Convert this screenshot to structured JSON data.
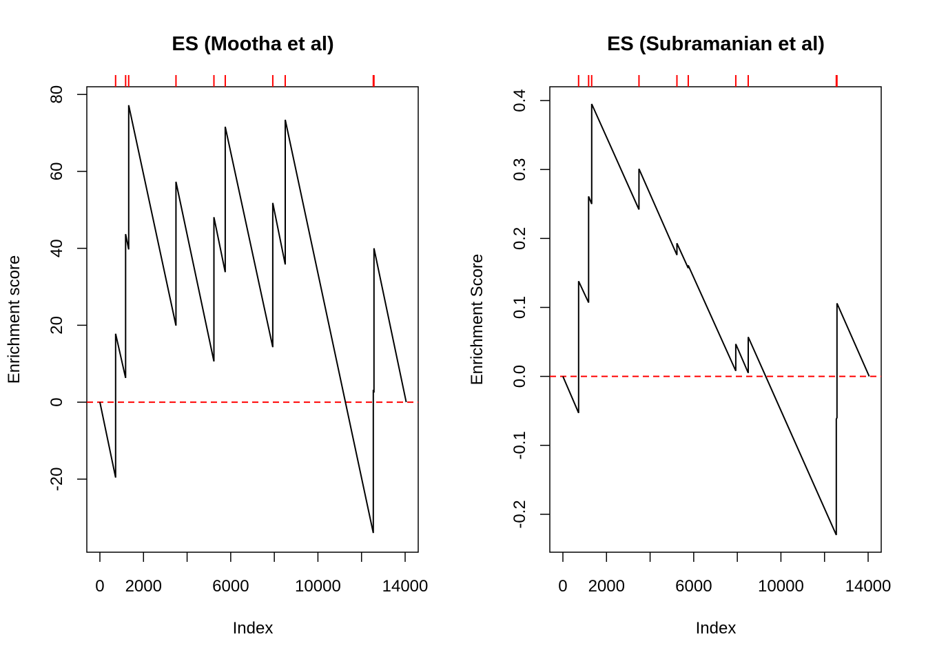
{
  "chart_data": [
    {
      "type": "line",
      "title": "ES (Mootha et al)",
      "xlabel": "Index",
      "ylabel": "Enrichment score",
      "xlim": [
        -600,
        14600
      ],
      "ylim": [
        -39,
        82
      ],
      "x_ticks": [
        0,
        2000,
        4000,
        6000,
        8000,
        10000,
        12000,
        14000
      ],
      "x_tick_labels": [
        "0",
        "2000",
        "",
        "6000",
        "",
        "10000",
        "",
        "14000"
      ],
      "y_ticks": [
        -20,
        0,
        20,
        40,
        60,
        80
      ],
      "y_tick_labels": [
        "-20",
        "0",
        "20",
        "40",
        "60",
        "80"
      ],
      "reference_line": {
        "y": 0,
        "color": "#ff0000",
        "style": "dashed"
      },
      "hits": [
        720,
        1180,
        1320,
        3490,
        5230,
        5750,
        7930,
        8500,
        12540,
        12570
      ],
      "hit_color": "#ff0000",
      "series": [
        {
          "color": "#000000",
          "x": [
            0,
            720,
            720,
            1180,
            1180,
            1320,
            1320,
            3490,
            3490,
            5230,
            5230,
            5750,
            5750,
            7930,
            7930,
            8500,
            8500,
            12540,
            12540,
            12570,
            12570,
            14050
          ],
          "y": [
            0,
            -19.6,
            17.8,
            6.3,
            43.7,
            39.7,
            77.2,
            19.9,
            57.3,
            10.6,
            48.1,
            33.8,
            71.6,
            14.3,
            51.8,
            35.8,
            73.4,
            -34.0,
            3.2,
            2.5,
            40.0,
            0
          ]
        }
      ]
    },
    {
      "type": "line",
      "title": "ES (Subramanian et al)",
      "xlabel": "Index",
      "ylabel": "Enrichment Score",
      "xlim": [
        -600,
        14600
      ],
      "ylim": [
        -0.255,
        0.42
      ],
      "x_ticks": [
        0,
        2000,
        4000,
        6000,
        8000,
        10000,
        12000,
        14000
      ],
      "x_tick_labels": [
        "0",
        "2000",
        "",
        "6000",
        "",
        "10000",
        "",
        "14000"
      ],
      "y_ticks": [
        -0.2,
        -0.1,
        0.0,
        0.1,
        0.2,
        0.3,
        0.4
      ],
      "y_tick_labels": [
        "-0.2",
        "-0.1",
        "0.0",
        "0.1",
        "0.2",
        "0.3",
        "0.4"
      ],
      "reference_line": {
        "y": 0,
        "color": "#ff0000",
        "style": "dashed"
      },
      "hits": [
        720,
        1180,
        1320,
        3490,
        5230,
        5750,
        7930,
        8500,
        12540,
        12570
      ],
      "hit_color": "#ff0000",
      "series": [
        {
          "color": "#000000",
          "x": [
            0,
            720,
            720,
            1180,
            1180,
            1320,
            1320,
            3490,
            3490,
            5230,
            5230,
            5750,
            5750,
            7930,
            7930,
            8500,
            8500,
            12540,
            12540,
            12570,
            12570,
            14050
          ],
          "y": [
            0,
            -0.053,
            0.138,
            0.107,
            0.261,
            0.25,
            0.395,
            0.242,
            0.301,
            0.176,
            0.193,
            0.157,
            0.161,
            0.008,
            0.047,
            0.005,
            0.057,
            -0.23,
            -0.062,
            -0.06,
            0.106,
            0
          ]
        }
      ]
    }
  ]
}
